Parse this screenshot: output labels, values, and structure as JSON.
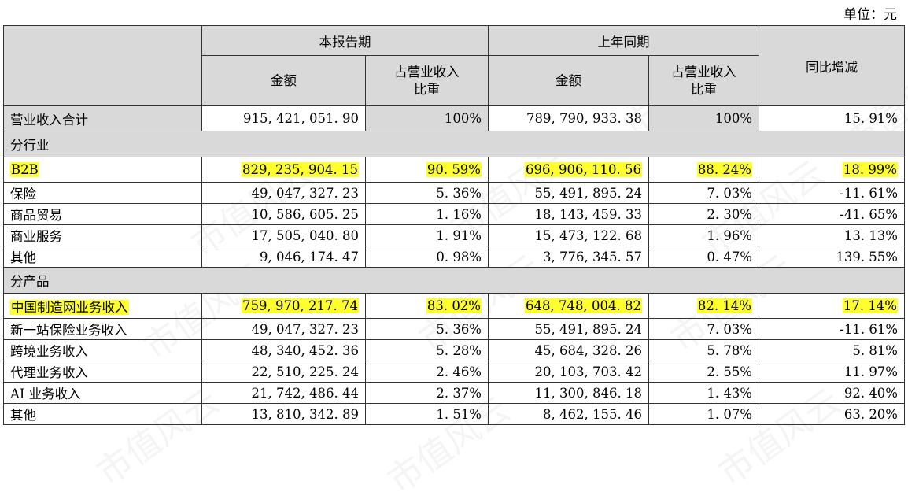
{
  "unit": "单位：元",
  "header": {
    "current_period": "本报告期",
    "prior_period": "上年同期",
    "yoy": "同比增减",
    "amount": "金额",
    "ratio_line1": "占营业收入",
    "ratio_line2": "比重"
  },
  "total": {
    "label": "营业收入合计",
    "cur_amount": "915, 421, 051. 90",
    "cur_ratio": "100%",
    "prior_amount": "789, 790, 933. 38",
    "prior_ratio": "100%",
    "yoy": "15. 91%"
  },
  "section_industry": "分行业",
  "industry_rows": [
    {
      "label": "B2B",
      "cur_amount": "829, 235, 904. 15",
      "cur_ratio": "90. 59%",
      "prior_amount": "696, 906, 110. 56",
      "prior_ratio": "88. 24%",
      "yoy": "18. 99%",
      "highlight": true
    },
    {
      "label": "保险",
      "cur_amount": "49, 047, 327. 23",
      "cur_ratio": "5. 36%",
      "prior_amount": "55, 491, 895. 24",
      "prior_ratio": "7. 03%",
      "yoy": "-11. 61%"
    },
    {
      "label": "商品贸易",
      "cur_amount": "10, 586, 605. 25",
      "cur_ratio": "1. 16%",
      "prior_amount": "18, 143, 459. 33",
      "prior_ratio": "2. 30%",
      "yoy": "-41. 65%"
    },
    {
      "label": "商业服务",
      "cur_amount": "17, 505, 040. 80",
      "cur_ratio": "1. 91%",
      "prior_amount": "15, 473, 122. 68",
      "prior_ratio": "1. 96%",
      "yoy": "13. 13%"
    },
    {
      "label": "其他",
      "cur_amount": "9, 046, 174. 47",
      "cur_ratio": "0. 98%",
      "prior_amount": "3, 776, 345. 57",
      "prior_ratio": "0. 47%",
      "yoy": "139. 55%"
    }
  ],
  "section_product": "分产品",
  "product_rows": [
    {
      "label": "中国制造网业务收入",
      "cur_amount": "759, 970, 217. 74",
      "cur_ratio": "83. 02%",
      "prior_amount": "648, 748, 004. 82",
      "prior_ratio": "82. 14%",
      "yoy": "17. 14%",
      "highlight": true
    },
    {
      "label": "新一站保险业务收入",
      "cur_amount": "49, 047, 327. 23",
      "cur_ratio": "5. 36%",
      "prior_amount": "55, 491, 895. 24",
      "prior_ratio": "7. 03%",
      "yoy": "-11. 61%"
    },
    {
      "label": "跨境业务收入",
      "cur_amount": "48, 340, 452. 36",
      "cur_ratio": "5. 28%",
      "prior_amount": "45, 684, 328. 26",
      "prior_ratio": "5. 78%",
      "yoy": "5. 81%"
    },
    {
      "label": "代理业务收入",
      "cur_amount": "22, 510, 225. 24",
      "cur_ratio": "2. 46%",
      "prior_amount": "20, 103, 703. 42",
      "prior_ratio": "2. 55%",
      "yoy": "11. 97%"
    },
    {
      "label": "AI 业务收入",
      "cur_amount": "21, 742, 486. 44",
      "cur_ratio": "2. 37%",
      "prior_amount": "11, 300, 846. 18",
      "prior_ratio": "1. 43%",
      "yoy": "92. 40%"
    },
    {
      "label": "其他",
      "cur_amount": "13, 810, 342. 89",
      "cur_ratio": "1. 51%",
      "prior_amount": "8, 462, 155. 46",
      "prior_ratio": "1. 07%",
      "yoy": "63. 20%"
    }
  ],
  "watermark": "市值风云"
}
